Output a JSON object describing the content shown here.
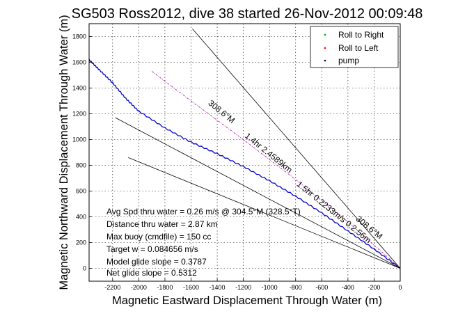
{
  "chart_data": {
    "type": "line",
    "title": "SG503 Ross2012, dive 38 started 26-Nov-2012 00:09:48",
    "xlabel": "Magnetic Eastward Displacement Through Water (m)",
    "ylabel": "Magnetic Northward Displacement Through Water (m)",
    "xlim": [
      -2380,
      0
    ],
    "ylim": [
      -100,
      1900
    ],
    "xticks": [
      -2200,
      -2000,
      -1800,
      -1600,
      -1400,
      -1200,
      -1000,
      -800,
      -600,
      -400,
      -200,
      0
    ],
    "yticks": [
      0,
      200,
      400,
      600,
      800,
      1000,
      1200,
      1400,
      1600,
      1800
    ],
    "grid": true,
    "legend_position": "top-right",
    "legend": [
      {
        "label": "Roll to Right",
        "color": "#00aa00",
        "marker": "."
      },
      {
        "label": "Roll to Left",
        "color": "#ff0000",
        "marker": "."
      },
      {
        "label": "pump",
        "color": "#000000",
        "marker": "."
      }
    ],
    "series": [
      {
        "color": "#0000cc",
        "style": "wobbly",
        "x": [
          -2380,
          -2300,
          -2200,
          -2100,
          -2000,
          -1800,
          -1600,
          -1400,
          -1200,
          -1000,
          -800,
          -600,
          -400,
          -200,
          0
        ],
        "y": [
          1620,
          1540,
          1440,
          1320,
          1220,
          1090,
          980,
          890,
          790,
          680,
          560,
          430,
          290,
          150,
          0
        ]
      },
      {
        "color": "#b000b0",
        "style": "dashdot",
        "x": [
          -1900,
          -1600,
          -1200,
          -800,
          -400,
          0
        ],
        "y": [
          1530,
          1300,
          1000,
          690,
          360,
          0
        ]
      },
      {
        "color": "#000000",
        "style": "solid",
        "x": [
          -1590,
          0
        ],
        "y": [
          1860,
          0
        ]
      },
      {
        "color": "#000000",
        "style": "solid",
        "x": [
          -2180,
          0
        ],
        "y": [
          1170,
          0
        ]
      },
      {
        "color": "#000000",
        "style": "solid",
        "x": [
          -2080,
          0
        ],
        "y": [
          860,
          0
        ]
      }
    ],
    "line_labels": [
      {
        "text": "308.6°M",
        "x": -1380,
        "y": 1200,
        "angle": 39
      },
      {
        "text": "1.4hr 2.4589km",
        "x": -1020,
        "y": 880,
        "angle": 39
      },
      {
        "text": "1.5hr 0.2233m/s 0.2.56m",
        "x": -520,
        "y": 420,
        "angle": 39
      },
      {
        "text": "308.6°M",
        "x": -250,
        "y": 300,
        "angle": 39
      }
    ],
    "annotations": [
      "Avg Spd thru water = 0.26 m/s @ 304.5°M (328.5°T)",
      "Distance thru water = 2.87 km",
      "Max buoy (cmdfile) = 150 cc",
      "Target w = 0.084656 m/s",
      "Model glide slope = 0.3787",
      "Net glide slope = 0.5312"
    ]
  }
}
